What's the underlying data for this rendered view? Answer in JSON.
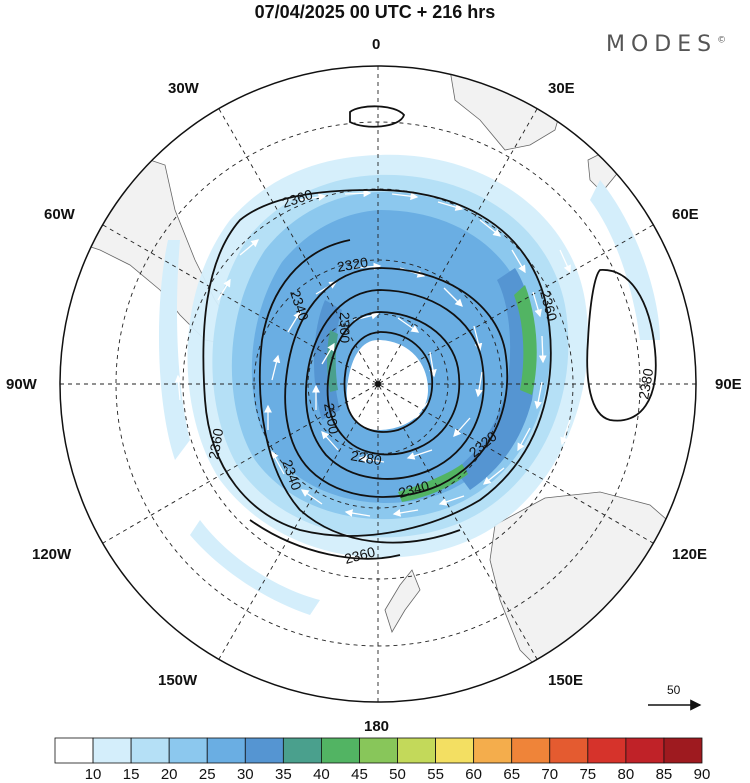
{
  "title": "07/04/2025  00 UTC  + 216 hrs",
  "brand": "MODES",
  "brand_mark": "©",
  "longitude_labels": {
    "n0": "0",
    "n30e": "30E",
    "n60e": "60E",
    "n90e": "90E",
    "n120e": "120E",
    "n150e": "150E",
    "n180": "180",
    "n150w": "150W",
    "n120w": "120W",
    "n90w": "90W",
    "n60w": "60W",
    "n30w": "30W"
  },
  "contour_labels": {
    "c1": "2360",
    "c2": "2320",
    "c3": "2340",
    "c4": "2300",
    "c5": "2360",
    "c6": "2380",
    "c7": "2320",
    "c8": "2280",
    "c9": "2340",
    "c10": "2360",
    "c11": "2340",
    "c12": "2360",
    "c13": "2300"
  },
  "colorbar": {
    "levels": [
      "10",
      "15",
      "20",
      "25",
      "30",
      "35",
      "40",
      "45",
      "50",
      "55",
      "60",
      "65",
      "70",
      "75",
      "80",
      "85",
      "90"
    ],
    "colors": [
      "#ffffff",
      "#d4eefb",
      "#b5e0f6",
      "#8cc8ee",
      "#6aaee3",
      "#5595d2",
      "#4aa08d",
      "#52b463",
      "#88c65a",
      "#c3d95a",
      "#f3df62",
      "#f4ad4c",
      "#ef8439",
      "#e45b30",
      "#d6332b",
      "#c02228",
      "#9e1a1f"
    ]
  },
  "reference_vector": "50"
}
